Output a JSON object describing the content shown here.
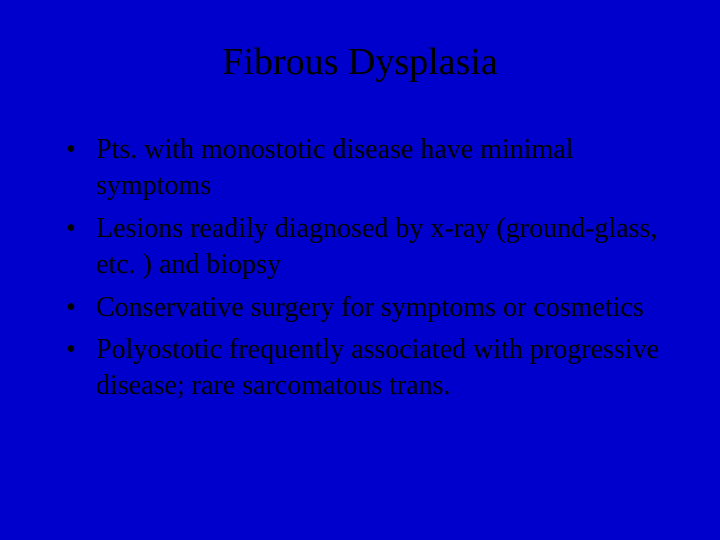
{
  "slide": {
    "background_color": "#0000cc",
    "text_color": "#000000",
    "title_fontsize": 38,
    "body_fontsize": 28,
    "font_family": "Times New Roman",
    "title": "Fibrous Dysplasia",
    "bullets": [
      "Pts. with monostotic disease have minimal symptoms",
      "Lesions readily diagnosed by x-ray (ground-glass, etc. ) and biopsy",
      "Conservative surgery for symptoms or cosmetics",
      "Polyostotic frequently associated with progressive disease; rare sarcomatous trans."
    ]
  }
}
